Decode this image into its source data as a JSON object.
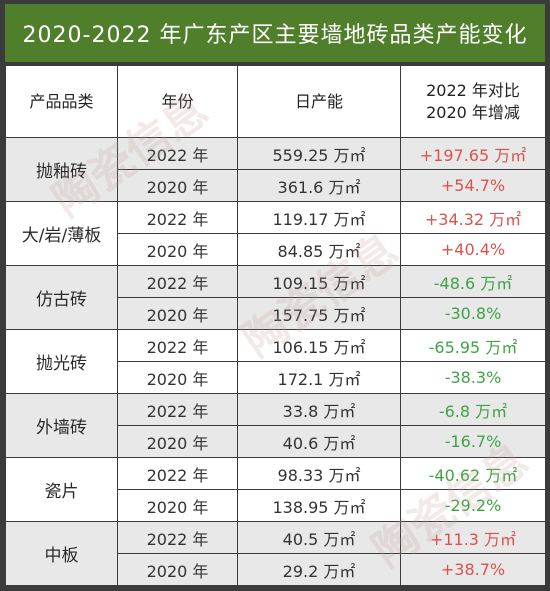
{
  "title": "2020-2022 年广东产区主要墙地砖品类产能变化",
  "headers": {
    "category": "产品品类",
    "year": "年份",
    "capacity": "日产能",
    "change_line1": "2022 年对比",
    "change_line2": "2020 年增减"
  },
  "rows": [
    {
      "category": "抛釉砖",
      "year1": "2022 年",
      "cap1": "559.25 万㎡",
      "year2": "2020 年",
      "cap2": "361.6 万㎡",
      "change_abs": "+197.65 万㎡",
      "change_pct": "+54.7%",
      "trend": "pos"
    },
    {
      "category": "大/岩/薄板",
      "year1": "2022 年",
      "cap1": "119.17 万㎡",
      "year2": "2020 年",
      "cap2": "84.85 万㎡",
      "change_abs": "+34.32 万㎡",
      "change_pct": "+40.4%",
      "trend": "pos"
    },
    {
      "category": "仿古砖",
      "year1": "2022 年",
      "cap1": "109.15 万㎡",
      "year2": "2020 年",
      "cap2": "157.75 万㎡",
      "change_abs": "-48.6 万㎡",
      "change_pct": "-30.8%",
      "trend": "neg"
    },
    {
      "category": "抛光砖",
      "year1": "2022 年",
      "cap1": "106.15 万㎡",
      "year2": "2020 年",
      "cap2": "172.1 万㎡",
      "change_abs": "-65.95 万㎡",
      "change_pct": "-38.3%",
      "trend": "neg"
    },
    {
      "category": "外墙砖",
      "year1": "2022 年",
      "cap1": "33.8 万㎡",
      "year2": "2020 年",
      "cap2": "40.6 万㎡",
      "change_abs": "-6.8 万㎡",
      "change_pct": "-16.7%",
      "trend": "neg"
    },
    {
      "category": "瓷片",
      "year1": "2022 年",
      "cap1": "98.33 万㎡",
      "year2": "2020 年",
      "cap2": "138.95 万㎡",
      "change_abs": "-40.62 万㎡",
      "change_pct": "-29.2%",
      "trend": "neg"
    },
    {
      "category": "中板",
      "year1": "2022 年",
      "cap1": "40.5 万㎡",
      "year2": "2020 年",
      "cap2": "29.2 万㎡",
      "change_abs": "+11.3 万㎡",
      "change_pct": "+38.7%",
      "trend": "pos"
    }
  ],
  "watermark": "陶瓷信息",
  "colors": {
    "header_green": "#4f7f2a",
    "positive": "#d9534f",
    "negative": "#3fa345",
    "odd_row": "#e8e8e8",
    "even_row": "#ffffff"
  }
}
